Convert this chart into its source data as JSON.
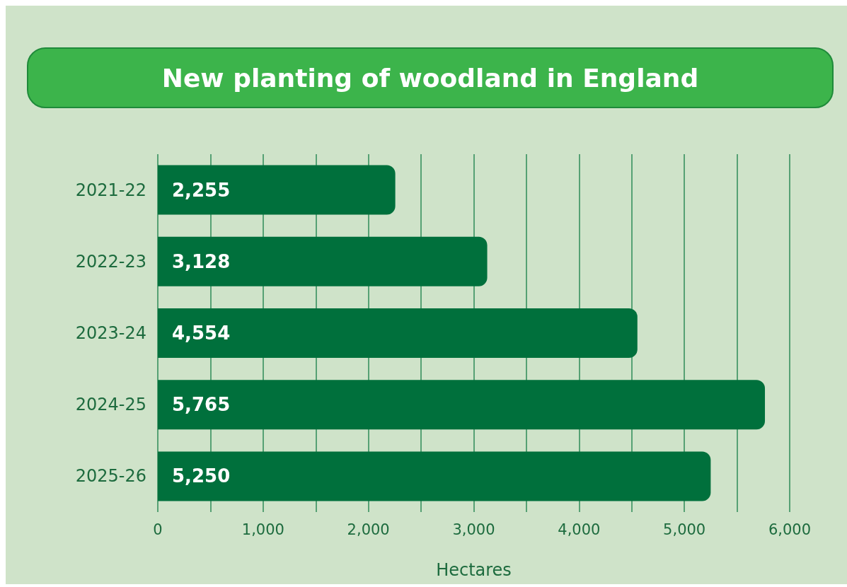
{
  "chart_data": {
    "type": "bar",
    "orientation": "horizontal",
    "title": "New planting of woodland in England",
    "xlabel": "Hectares",
    "categories": [
      "2021-22",
      "2022-23",
      "2023-24",
      "2024-25",
      "2025-26"
    ],
    "values": [
      2255,
      3128,
      4554,
      5765,
      5250
    ],
    "color": "#00703c",
    "value_labels": [
      "2,255",
      "3,128",
      "4,554",
      "5,765",
      "5,250"
    ],
    "xlim": [
      0,
      6000
    ],
    "xticks": [
      0,
      {
        "value": 500,
        "label": null
      },
      {
        "value": 1000,
        "label": "1,000"
      },
      {
        "value": 1500,
        "label": null
      },
      {
        "value": 2000,
        "label": "2,000"
      },
      {
        "value": 2500,
        "label": null
      },
      {
        "value": 3000,
        "label": "3,000"
      },
      {
        "value": 3500,
        "label": null
      },
      {
        "value": 4000,
        "label": "4,000"
      },
      {
        "value": 4500,
        "label": null
      },
      {
        "value": 5000,
        "label": "5,000"
      },
      {
        "value": 5500,
        "label": null
      },
      {
        "value": 6000,
        "label": "6,000"
      }
    ],
    "grid": "x"
  }
}
